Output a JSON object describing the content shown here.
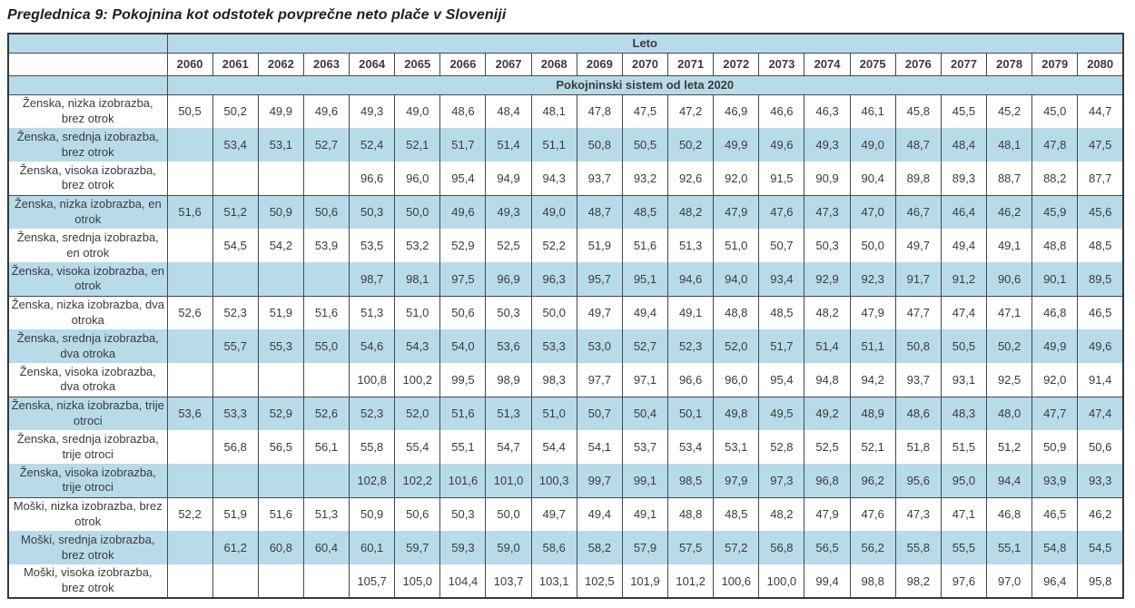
{
  "title": "Preglednica 9: Pokojnina kot odstotek povprečne neto plače v Sloveniji",
  "colors": {
    "band_blue": "#b7dbe9",
    "border": "#33383d",
    "text": "#3b3b3b"
  },
  "table": {
    "year_header": "Leto",
    "system_header": "Pokojninski sistem od leta 2020",
    "years": [
      "2060",
      "2061",
      "2062",
      "2063",
      "2064",
      "2065",
      "2066",
      "2067",
      "2068",
      "2069",
      "2070",
      "2071",
      "2072",
      "2073",
      "2074",
      "2075",
      "2076",
      "2077",
      "2078",
      "2079",
      "2080"
    ],
    "rows": [
      {
        "label": "Ženska, nizka izobrazba, brez otrok",
        "values": [
          "50,5",
          "50,2",
          "49,9",
          "49,6",
          "49,3",
          "49,0",
          "48,6",
          "48,4",
          "48,1",
          "47,8",
          "47,5",
          "47,2",
          "46,9",
          "46,6",
          "46,3",
          "46,1",
          "45,8",
          "45,5",
          "45,2",
          "45,0",
          "44,7"
        ]
      },
      {
        "label": "Ženska, srednja izobrazba, brez otrok",
        "values": [
          "",
          "53,4",
          "53,1",
          "52,7",
          "52,4",
          "52,1",
          "51,7",
          "51,4",
          "51,1",
          "50,8",
          "50,5",
          "50,2",
          "49,9",
          "49,6",
          "49,3",
          "49,0",
          "48,7",
          "48,4",
          "48,1",
          "47,8",
          "47,5"
        ]
      },
      {
        "label": "Ženska, visoka izobrazba, brez otrok",
        "values": [
          "",
          "",
          "",
          "",
          "96,6",
          "96,0",
          "95,4",
          "94,9",
          "94,3",
          "93,7",
          "93,2",
          "92,6",
          "92,0",
          "91,5",
          "90,9",
          "90,4",
          "89,8",
          "89,3",
          "88,7",
          "88,2",
          "87,7"
        ]
      },
      {
        "label": "Ženska, nizka izobrazba, en otrok",
        "values": [
          "51,6",
          "51,2",
          "50,9",
          "50,6",
          "50,3",
          "50,0",
          "49,6",
          "49,3",
          "49,0",
          "48,7",
          "48,5",
          "48,2",
          "47,9",
          "47,6",
          "47,3",
          "47,0",
          "46,7",
          "46,4",
          "46,2",
          "45,9",
          "45,6"
        ]
      },
      {
        "label": "Ženska, srednja izobrazba, en otrok",
        "values": [
          "",
          "54,5",
          "54,2",
          "53,9",
          "53,5",
          "53,2",
          "52,9",
          "52,5",
          "52,2",
          "51,9",
          "51,6",
          "51,3",
          "51,0",
          "50,7",
          "50,3",
          "50,0",
          "49,7",
          "49,4",
          "49,1",
          "48,8",
          "48,5"
        ]
      },
      {
        "label": "Ženska, visoka izobrazba, en otrok",
        "values": [
          "",
          "",
          "",
          "",
          "98,7",
          "98,1",
          "97,5",
          "96,9",
          "96,3",
          "95,7",
          "95,1",
          "94,6",
          "94,0",
          "93,4",
          "92,9",
          "92,3",
          "91,7",
          "91,2",
          "90,6",
          "90,1",
          "89,5"
        ]
      },
      {
        "label": "Ženska, nizka izobrazba, dva otroka",
        "values": [
          "52,6",
          "52,3",
          "51,9",
          "51,6",
          "51,3",
          "51,0",
          "50,6",
          "50,3",
          "50,0",
          "49,7",
          "49,4",
          "49,1",
          "48,8",
          "48,5",
          "48,2",
          "47,9",
          "47,7",
          "47,4",
          "47,1",
          "46,8",
          "46,5"
        ]
      },
      {
        "label": "Ženska, srednja izobrazba, dva otroka",
        "values": [
          "",
          "55,7",
          "55,3",
          "55,0",
          "54,6",
          "54,3",
          "54,0",
          "53,6",
          "53,3",
          "53,0",
          "52,7",
          "52,3",
          "52,0",
          "51,7",
          "51,4",
          "51,1",
          "50,8",
          "50,5",
          "50,2",
          "49,9",
          "49,6"
        ]
      },
      {
        "label": "Ženska, visoka izobrazba, dva otroka",
        "values": [
          "",
          "",
          "",
          "",
          "100,8",
          "100,2",
          "99,5",
          "98,9",
          "98,3",
          "97,7",
          "97,1",
          "96,6",
          "96,0",
          "95,4",
          "94,8",
          "94,2",
          "93,7",
          "93,1",
          "92,5",
          "92,0",
          "91,4"
        ]
      },
      {
        "label": "Ženska, nizka izobrazba, trije otroci",
        "values": [
          "53,6",
          "53,3",
          "52,9",
          "52,6",
          "52,3",
          "52,0",
          "51,6",
          "51,3",
          "51,0",
          "50,7",
          "50,4",
          "50,1",
          "49,8",
          "49,5",
          "49,2",
          "48,9",
          "48,6",
          "48,3",
          "48,0",
          "47,7",
          "47,4"
        ]
      },
      {
        "label": "Ženska, srednja izobrazba, trije otroci",
        "values": [
          "",
          "56,8",
          "56,5",
          "56,1",
          "55,8",
          "55,4",
          "55,1",
          "54,7",
          "54,4",
          "54,1",
          "53,7",
          "53,4",
          "53,1",
          "52,8",
          "52,5",
          "52,1",
          "51,8",
          "51,5",
          "51,2",
          "50,9",
          "50,6"
        ]
      },
      {
        "label": "Ženska, visoka izobrazba, trije otroci",
        "values": [
          "",
          "",
          "",
          "",
          "102,8",
          "102,2",
          "101,6",
          "101,0",
          "100,3",
          "99,7",
          "99,1",
          "98,5",
          "97,9",
          "97,3",
          "96,8",
          "96,2",
          "95,6",
          "95,0",
          "94,4",
          "93,9",
          "93,3"
        ]
      },
      {
        "label": "Moški, nizka izobrazba, brez otrok",
        "values": [
          "52,2",
          "51,9",
          "51,6",
          "51,3",
          "50,9",
          "50,6",
          "50,3",
          "50,0",
          "49,7",
          "49,4",
          "49,1",
          "48,8",
          "48,5",
          "48,2",
          "47,9",
          "47,6",
          "47,3",
          "47,1",
          "46,8",
          "46,5",
          "46,2"
        ]
      },
      {
        "label": "Moški, srednja izobrazba, brez otrok",
        "values": [
          "",
          "61,2",
          "60,8",
          "60,4",
          "60,1",
          "59,7",
          "59,3",
          "59,0",
          "58,6",
          "58,2",
          "57,9",
          "57,5",
          "57,2",
          "56,8",
          "56,5",
          "56,2",
          "55,8",
          "55,5",
          "55,1",
          "54,8",
          "54,5"
        ]
      },
      {
        "label": "Moški, visoka izobrazba, brez otrok",
        "values": [
          "",
          "",
          "",
          "",
          "105,7",
          "105,0",
          "104,4",
          "103,7",
          "103,1",
          "102,5",
          "101,9",
          "101,2",
          "100,6",
          "100,0",
          "99,4",
          "98,8",
          "98,2",
          "97,6",
          "97,0",
          "96,4",
          "95,8"
        ]
      }
    ]
  }
}
